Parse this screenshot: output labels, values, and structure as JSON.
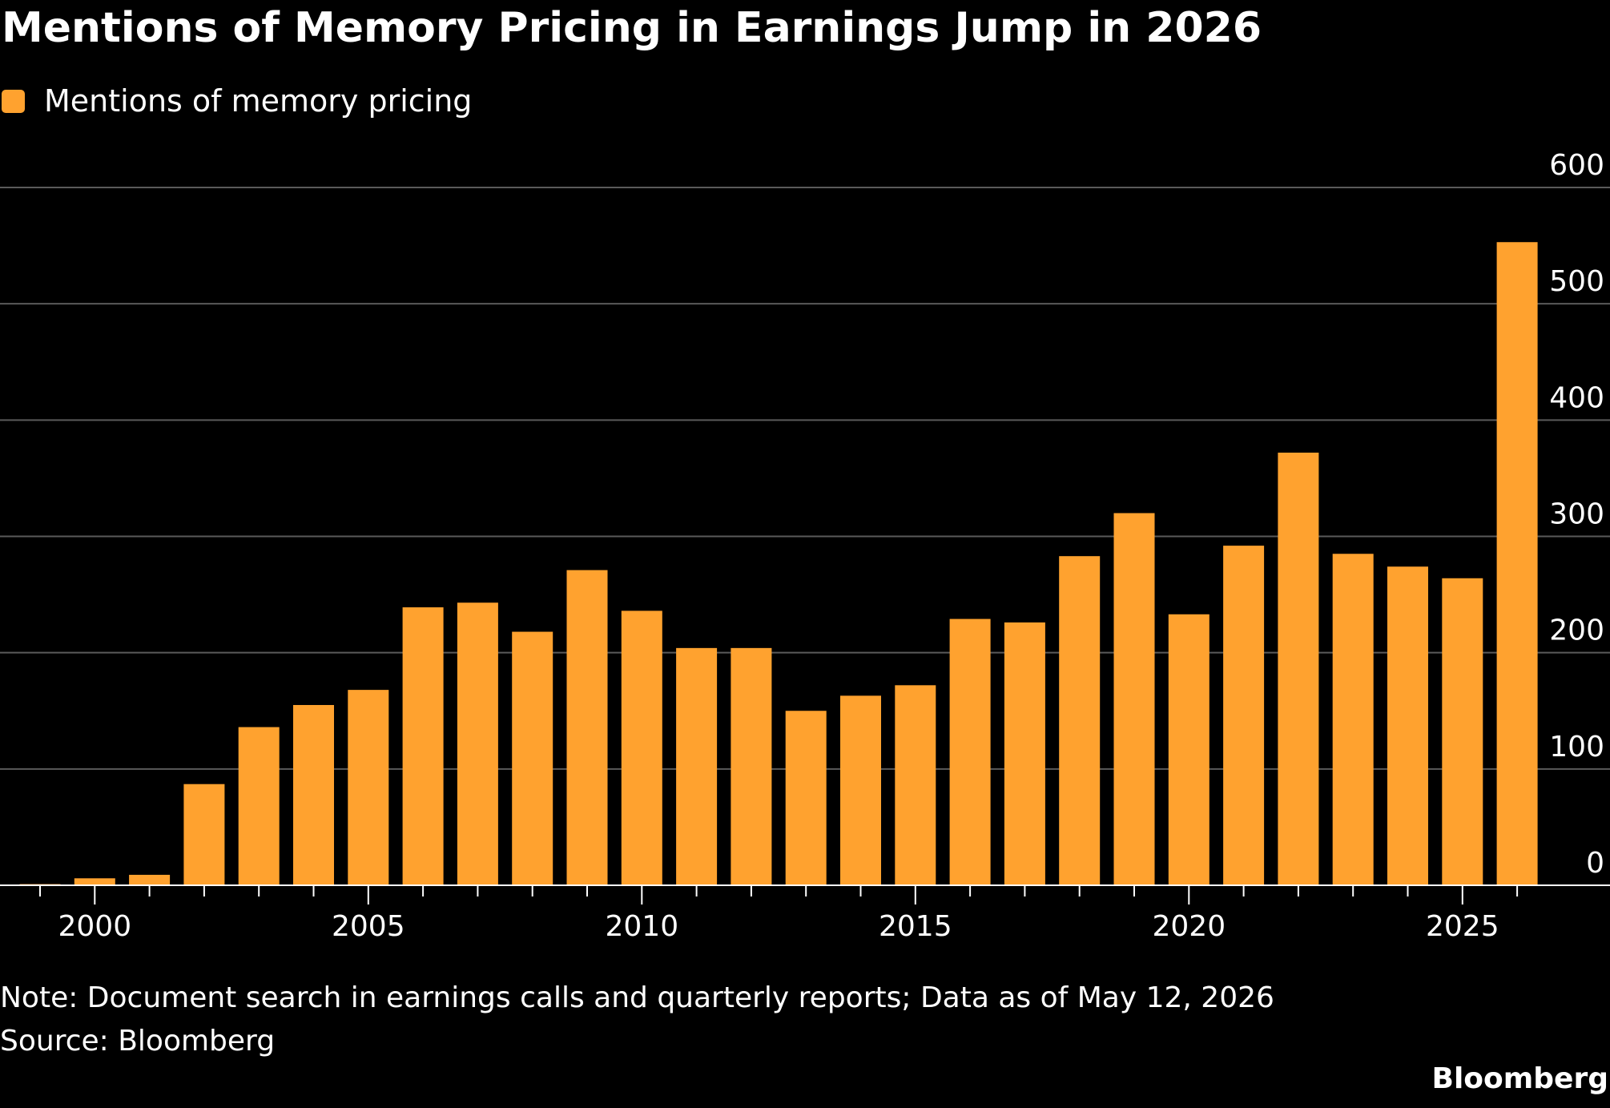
{
  "title": "Mentions of Memory Pricing in Earnings Jump in 2026",
  "legend": {
    "label": "Mentions of memory pricing",
    "color": "#FFA22F"
  },
  "note": "Note: Document search in earnings calls and quarterly reports; Data as of May 12, 2026",
  "source": "Source: Bloomberg",
  "brand": "Bloomberg",
  "colors": {
    "background": "#000000",
    "bar": "#FFA22F",
    "grid": "#5a5a5a",
    "axis": "#ffffff",
    "text": "#ffffff"
  },
  "chart_data": {
    "type": "bar",
    "series": [
      {
        "name": "Mentions of memory pricing",
        "x": [
          1999,
          2000,
          2001,
          2002,
          2003,
          2004,
          2005,
          2006,
          2007,
          2008,
          2009,
          2010,
          2011,
          2012,
          2013,
          2014,
          2015,
          2016,
          2017,
          2018,
          2019,
          2020,
          2021,
          2022,
          2023,
          2024,
          2025,
          2026
        ],
        "values": [
          1,
          6,
          9,
          87,
          136,
          155,
          168,
          239,
          243,
          218,
          271,
          236,
          204,
          204,
          150,
          163,
          172,
          229,
          226,
          283,
          320,
          233,
          292,
          372,
          285,
          274,
          264,
          553
        ]
      }
    ],
    "ylim": [
      0,
      600
    ],
    "yticks": [
      0,
      100,
      200,
      300,
      400,
      500,
      600
    ],
    "xticks": [
      2000,
      2005,
      2010,
      2015,
      2020,
      2025
    ],
    "xlabel": "",
    "ylabel": "",
    "y_axis_side": "right",
    "grid": true,
    "legend_position": "top-left"
  }
}
